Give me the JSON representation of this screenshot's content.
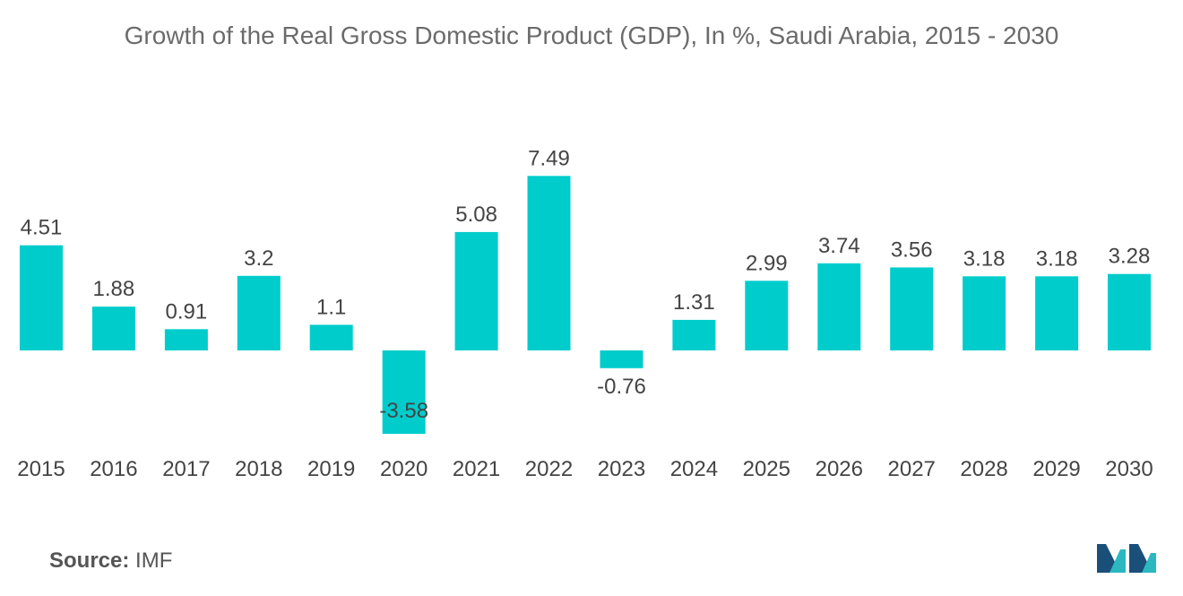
{
  "chart_data": {
    "type": "bar",
    "title": "Growth of the Real Gross Domestic Product (GDP), In %, Saudi Arabia, 2015 - 2030",
    "xlabel": "",
    "ylabel": "",
    "categories": [
      "2015",
      "2016",
      "2017",
      "2018",
      "2019",
      "2020",
      "2021",
      "2022",
      "2023",
      "2024",
      "2025",
      "2026",
      "2027",
      "2028",
      "2029",
      "2030"
    ],
    "values": [
      4.51,
      1.88,
      0.91,
      3.2,
      1.1,
      -3.58,
      5.08,
      7.49,
      -0.76,
      1.31,
      2.99,
      3.74,
      3.56,
      3.18,
      3.18,
      3.28
    ],
    "labels": [
      "4.51",
      "1.88",
      "0.91",
      "3.2",
      "1.1",
      "-3.58",
      "5.08",
      "7.49",
      "-0.76",
      "1.31",
      "2.99",
      "3.74",
      "3.56",
      "3.18",
      "3.18",
      "3.28"
    ],
    "ylim": [
      -3.58,
      7.49
    ],
    "grid": false,
    "bar_color": "#00cccc"
  },
  "source": {
    "label": "Source:",
    "value": "IMF"
  },
  "colors": {
    "bar": "#00cccc",
    "text": "#444444",
    "logo_dark": "#1a4f7a",
    "logo_teal": "#2bb8c0"
  }
}
